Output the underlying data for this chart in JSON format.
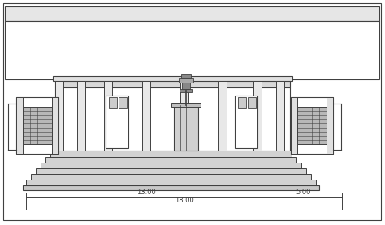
{
  "bg_color": "#ffffff",
  "line_color": "#404040",
  "lw": 0.8,
  "dim_color": "#404040",
  "dim_fs": 6.0,
  "dim_label_13": "13.00",
  "dim_label_5": "5.00",
  "dim_label_18": "18.00"
}
